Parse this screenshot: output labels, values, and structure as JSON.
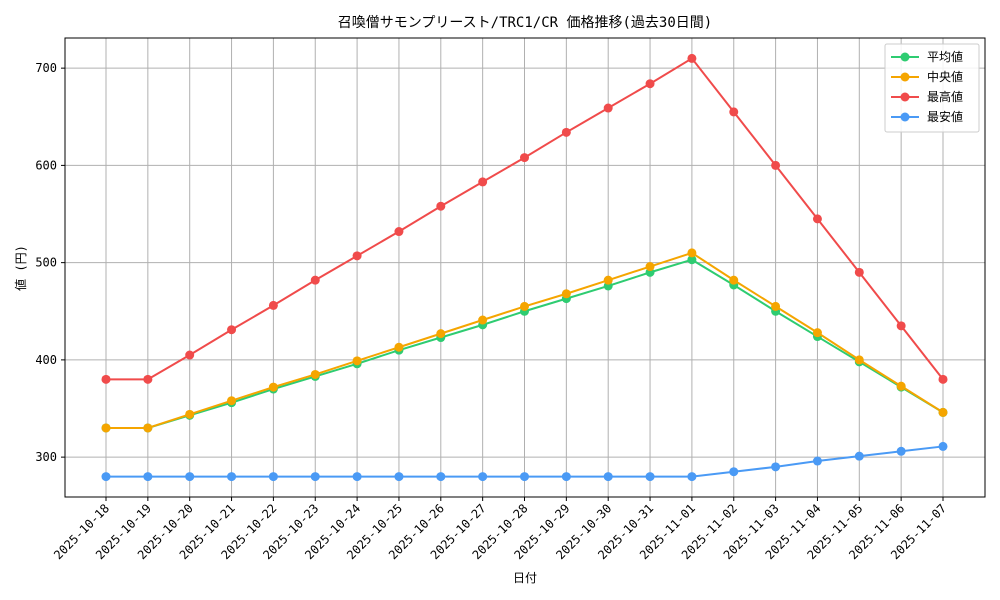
{
  "chart_data": {
    "type": "line",
    "title": "召喚僧サモンプリースト/TRC1/CR 価格推移(過去30日間)",
    "xlabel": "日付",
    "ylabel": "値 (円)",
    "ylim": [
      259,
      731
    ],
    "yticks": [
      300,
      400,
      500,
      600,
      700
    ],
    "grid": true,
    "legend_position": "top-right",
    "categories": [
      "2025-10-18",
      "2025-10-19",
      "2025-10-20",
      "2025-10-21",
      "2025-10-22",
      "2025-10-23",
      "2025-10-24",
      "2025-10-25",
      "2025-10-26",
      "2025-10-27",
      "2025-10-28",
      "2025-10-29",
      "2025-10-30",
      "2025-10-31",
      "2025-11-01",
      "2025-11-02",
      "2025-11-03",
      "2025-11-04",
      "2025-11-05",
      "2025-11-06",
      "2025-11-07"
    ],
    "series": [
      {
        "name": "平均値",
        "color": "#2ecc71",
        "values": [
          330,
          330,
          343,
          356,
          370,
          383,
          396,
          410,
          423,
          436,
          450,
          463,
          476,
          490,
          503,
          477,
          450,
          424,
          398,
          372,
          346
        ]
      },
      {
        "name": "中央値",
        "color": "#f5a500",
        "values": [
          330,
          330,
          344,
          358,
          372,
          385,
          399,
          413,
          427,
          441,
          455,
          468,
          482,
          496,
          510,
          482,
          455,
          428,
          400,
          373,
          346
        ]
      },
      {
        "name": "最高値",
        "color": "#f04b4b",
        "values": [
          380,
          380,
          405,
          431,
          456,
          482,
          507,
          532,
          558,
          583,
          608,
          634,
          659,
          684,
          710,
          655,
          600,
          545,
          490,
          435,
          380
        ]
      },
      {
        "name": "最安値",
        "color": "#4a9af5",
        "values": [
          280,
          280,
          280,
          280,
          280,
          280,
          280,
          280,
          280,
          280,
          280,
          280,
          280,
          280,
          280,
          285,
          290,
          296,
          301,
          306,
          311
        ]
      }
    ]
  }
}
